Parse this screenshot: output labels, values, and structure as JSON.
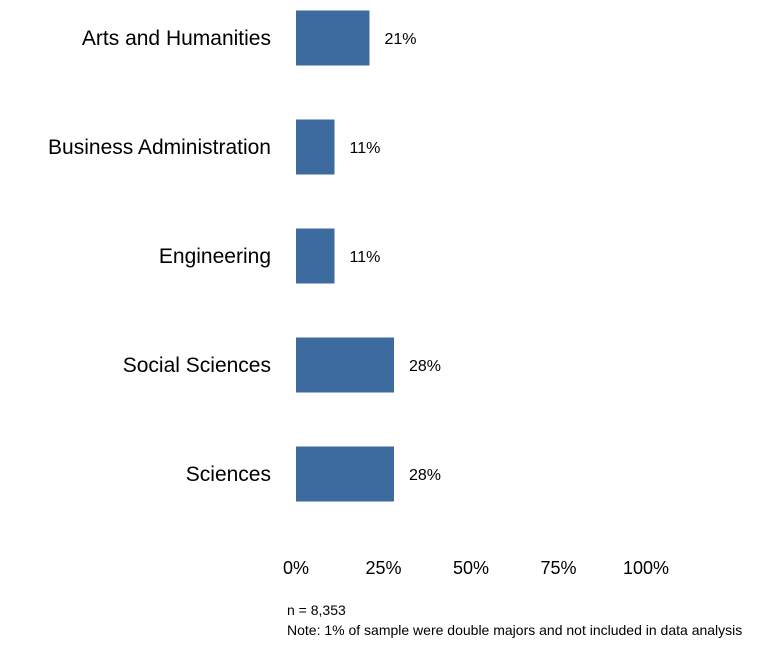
{
  "chart_data": {
    "type": "bar",
    "orientation": "horizontal",
    "categories": [
      "Arts and Humanities",
      "Business Administration",
      "Engineering",
      "Social Sciences",
      "Sciences"
    ],
    "values": [
      21,
      11,
      11,
      28,
      28
    ],
    "value_labels": [
      "21%",
      "11%",
      "11%",
      "28%",
      "28%"
    ],
    "xlim": [
      0,
      100
    ],
    "x_ticks": [
      0,
      25,
      50,
      75,
      100
    ],
    "x_tick_labels": [
      "0%",
      "25%",
      "50%",
      "75%",
      "100%"
    ],
    "grid": false,
    "bar_color": "#3d6b9f"
  },
  "notes": {
    "n": "n = 8,353",
    "note": "Note: 1% of sample were double majors and not included in data analysis"
  }
}
